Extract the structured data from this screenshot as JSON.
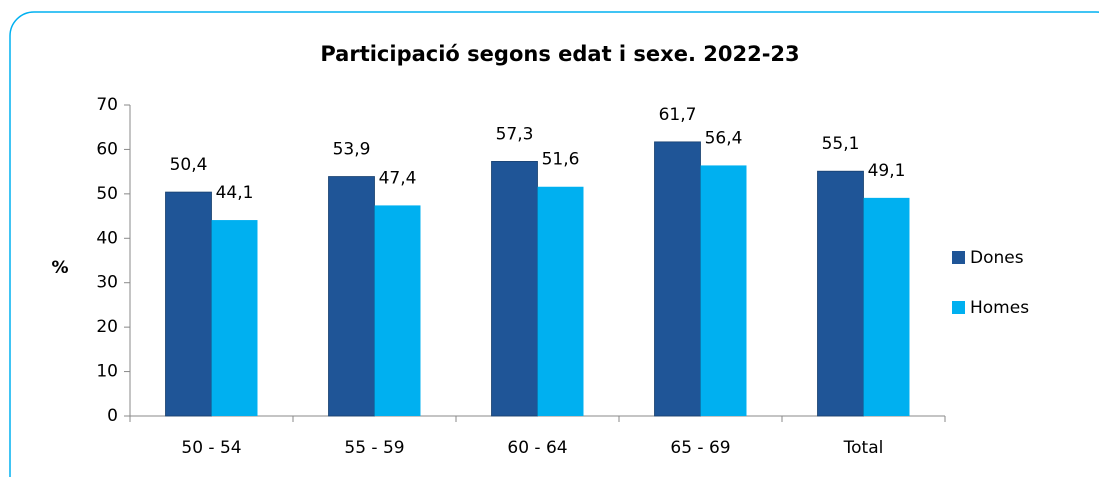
{
  "chart_data": {
    "type": "bar",
    "title": "Participació segons edat i sexe. 2022-23",
    "y_label": "%",
    "categories": [
      "50 - 54",
      "55 - 59",
      "60 - 64",
      "65 - 69",
      "Total"
    ],
    "series": [
      {
        "name": "Dones",
        "color": "#1f5597",
        "values": [
          50.4,
          53.9,
          57.3,
          61.7,
          55.1
        ],
        "value_labels": [
          "50,4",
          "53,9",
          "57,3",
          "61,7",
          "55,1"
        ]
      },
      {
        "name": "Homes",
        "color": "#00b0f0",
        "values": [
          44.1,
          47.4,
          51.6,
          56.4,
          49.1
        ],
        "value_labels": [
          "44,1",
          "47,4",
          "51,6",
          "56,4",
          "49,1"
        ]
      }
    ],
    "ylim": [
      0,
      70
    ],
    "yticks": [
      0,
      10,
      20,
      30,
      40,
      50,
      60,
      70
    ],
    "grid": false,
    "legend": "right"
  }
}
